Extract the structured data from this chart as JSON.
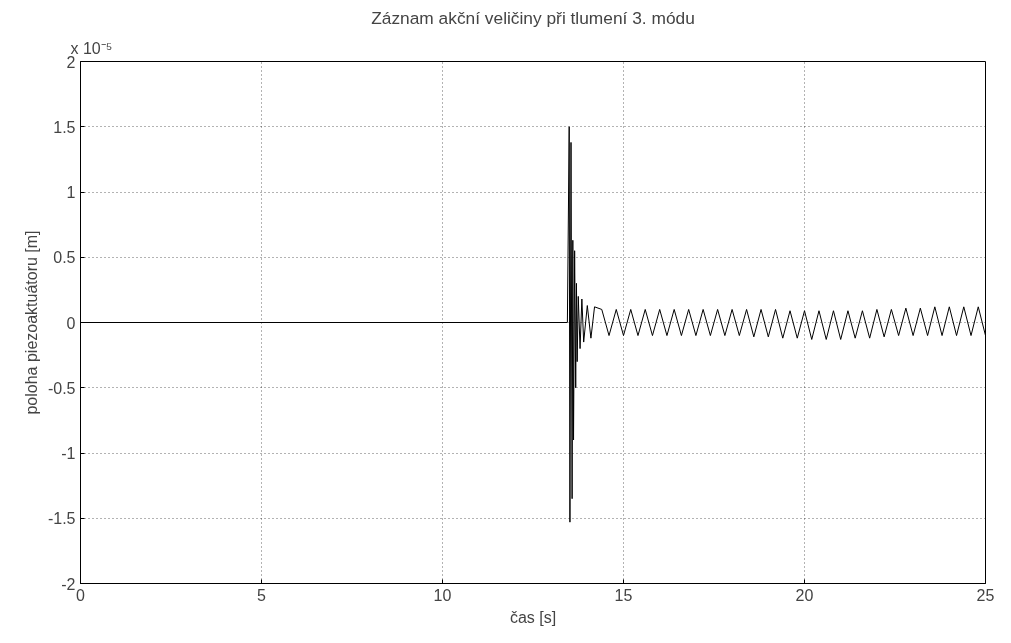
{
  "chart_data": {
    "type": "line",
    "title": "Záznam akční veličiny při tlumení 3. módu",
    "xlabel": "čas [s]",
    "ylabel": "poloha piezoaktuátoru [m]",
    "annotations": [
      "x 10⁻⁵"
    ],
    "xlim": [
      0,
      25
    ],
    "ylim": [
      -2,
      2
    ],
    "xticks": [
      0,
      5,
      10,
      15,
      20,
      25
    ],
    "yticks": [
      -2,
      -1.5,
      -1,
      -0.5,
      0,
      0.5,
      1,
      1.5,
      2
    ],
    "grid": true,
    "series": [
      {
        "color": "#000000",
        "x": [
          0,
          13.45,
          13.5,
          13.52,
          13.55,
          13.58,
          13.6,
          13.62,
          13.65,
          13.68,
          13.7,
          13.72,
          13.75,
          13.8,
          13.85,
          13.9,
          14.0,
          14.1,
          14.2,
          14.4,
          14.6,
          14.8,
          15.0,
          15.2,
          15.4,
          15.6,
          15.8,
          16.0,
          16.2,
          16.4,
          16.6,
          16.8,
          17.0,
          17.2,
          17.4,
          17.6,
          17.8,
          18.0,
          18.2,
          18.4,
          18.6,
          18.8,
          19.0,
          19.2,
          19.4,
          19.6,
          19.8,
          20.0,
          20.2,
          20.4,
          20.6,
          20.8,
          21.0,
          21.2,
          21.4,
          21.6,
          21.8,
          22.0,
          22.2,
          22.4,
          22.6,
          22.8,
          23.0,
          23.2,
          23.4,
          23.6,
          23.8,
          24.0,
          24.2,
          24.4,
          24.6,
          24.8,
          25.0
        ],
        "values": [
          0,
          0,
          1.5,
          -1.53,
          1.38,
          -1.35,
          0.63,
          -0.9,
          0.55,
          -0.5,
          0.3,
          -0.3,
          0.2,
          -0.2,
          0.18,
          -0.15,
          0.13,
          -0.12,
          0.12,
          0.1,
          -0.1,
          0.1,
          -0.1,
          0.1,
          -0.1,
          0.1,
          -0.1,
          0.1,
          -0.1,
          0.1,
          -0.1,
          0.1,
          -0.1,
          0.1,
          -0.1,
          0.1,
          -0.1,
          0.1,
          -0.1,
          0.1,
          -0.11,
          0.1,
          -0.11,
          0.1,
          -0.12,
          0.09,
          -0.12,
          0.09,
          -0.13,
          0.09,
          -0.13,
          0.09,
          -0.13,
          0.09,
          -0.12,
          0.09,
          -0.12,
          0.1,
          -0.11,
          0.1,
          -0.1,
          0.11,
          -0.1,
          0.11,
          -0.1,
          0.12,
          -0.1,
          0.12,
          -0.1,
          0.12,
          -0.1,
          0.12,
          -0.1
        ]
      }
    ]
  }
}
